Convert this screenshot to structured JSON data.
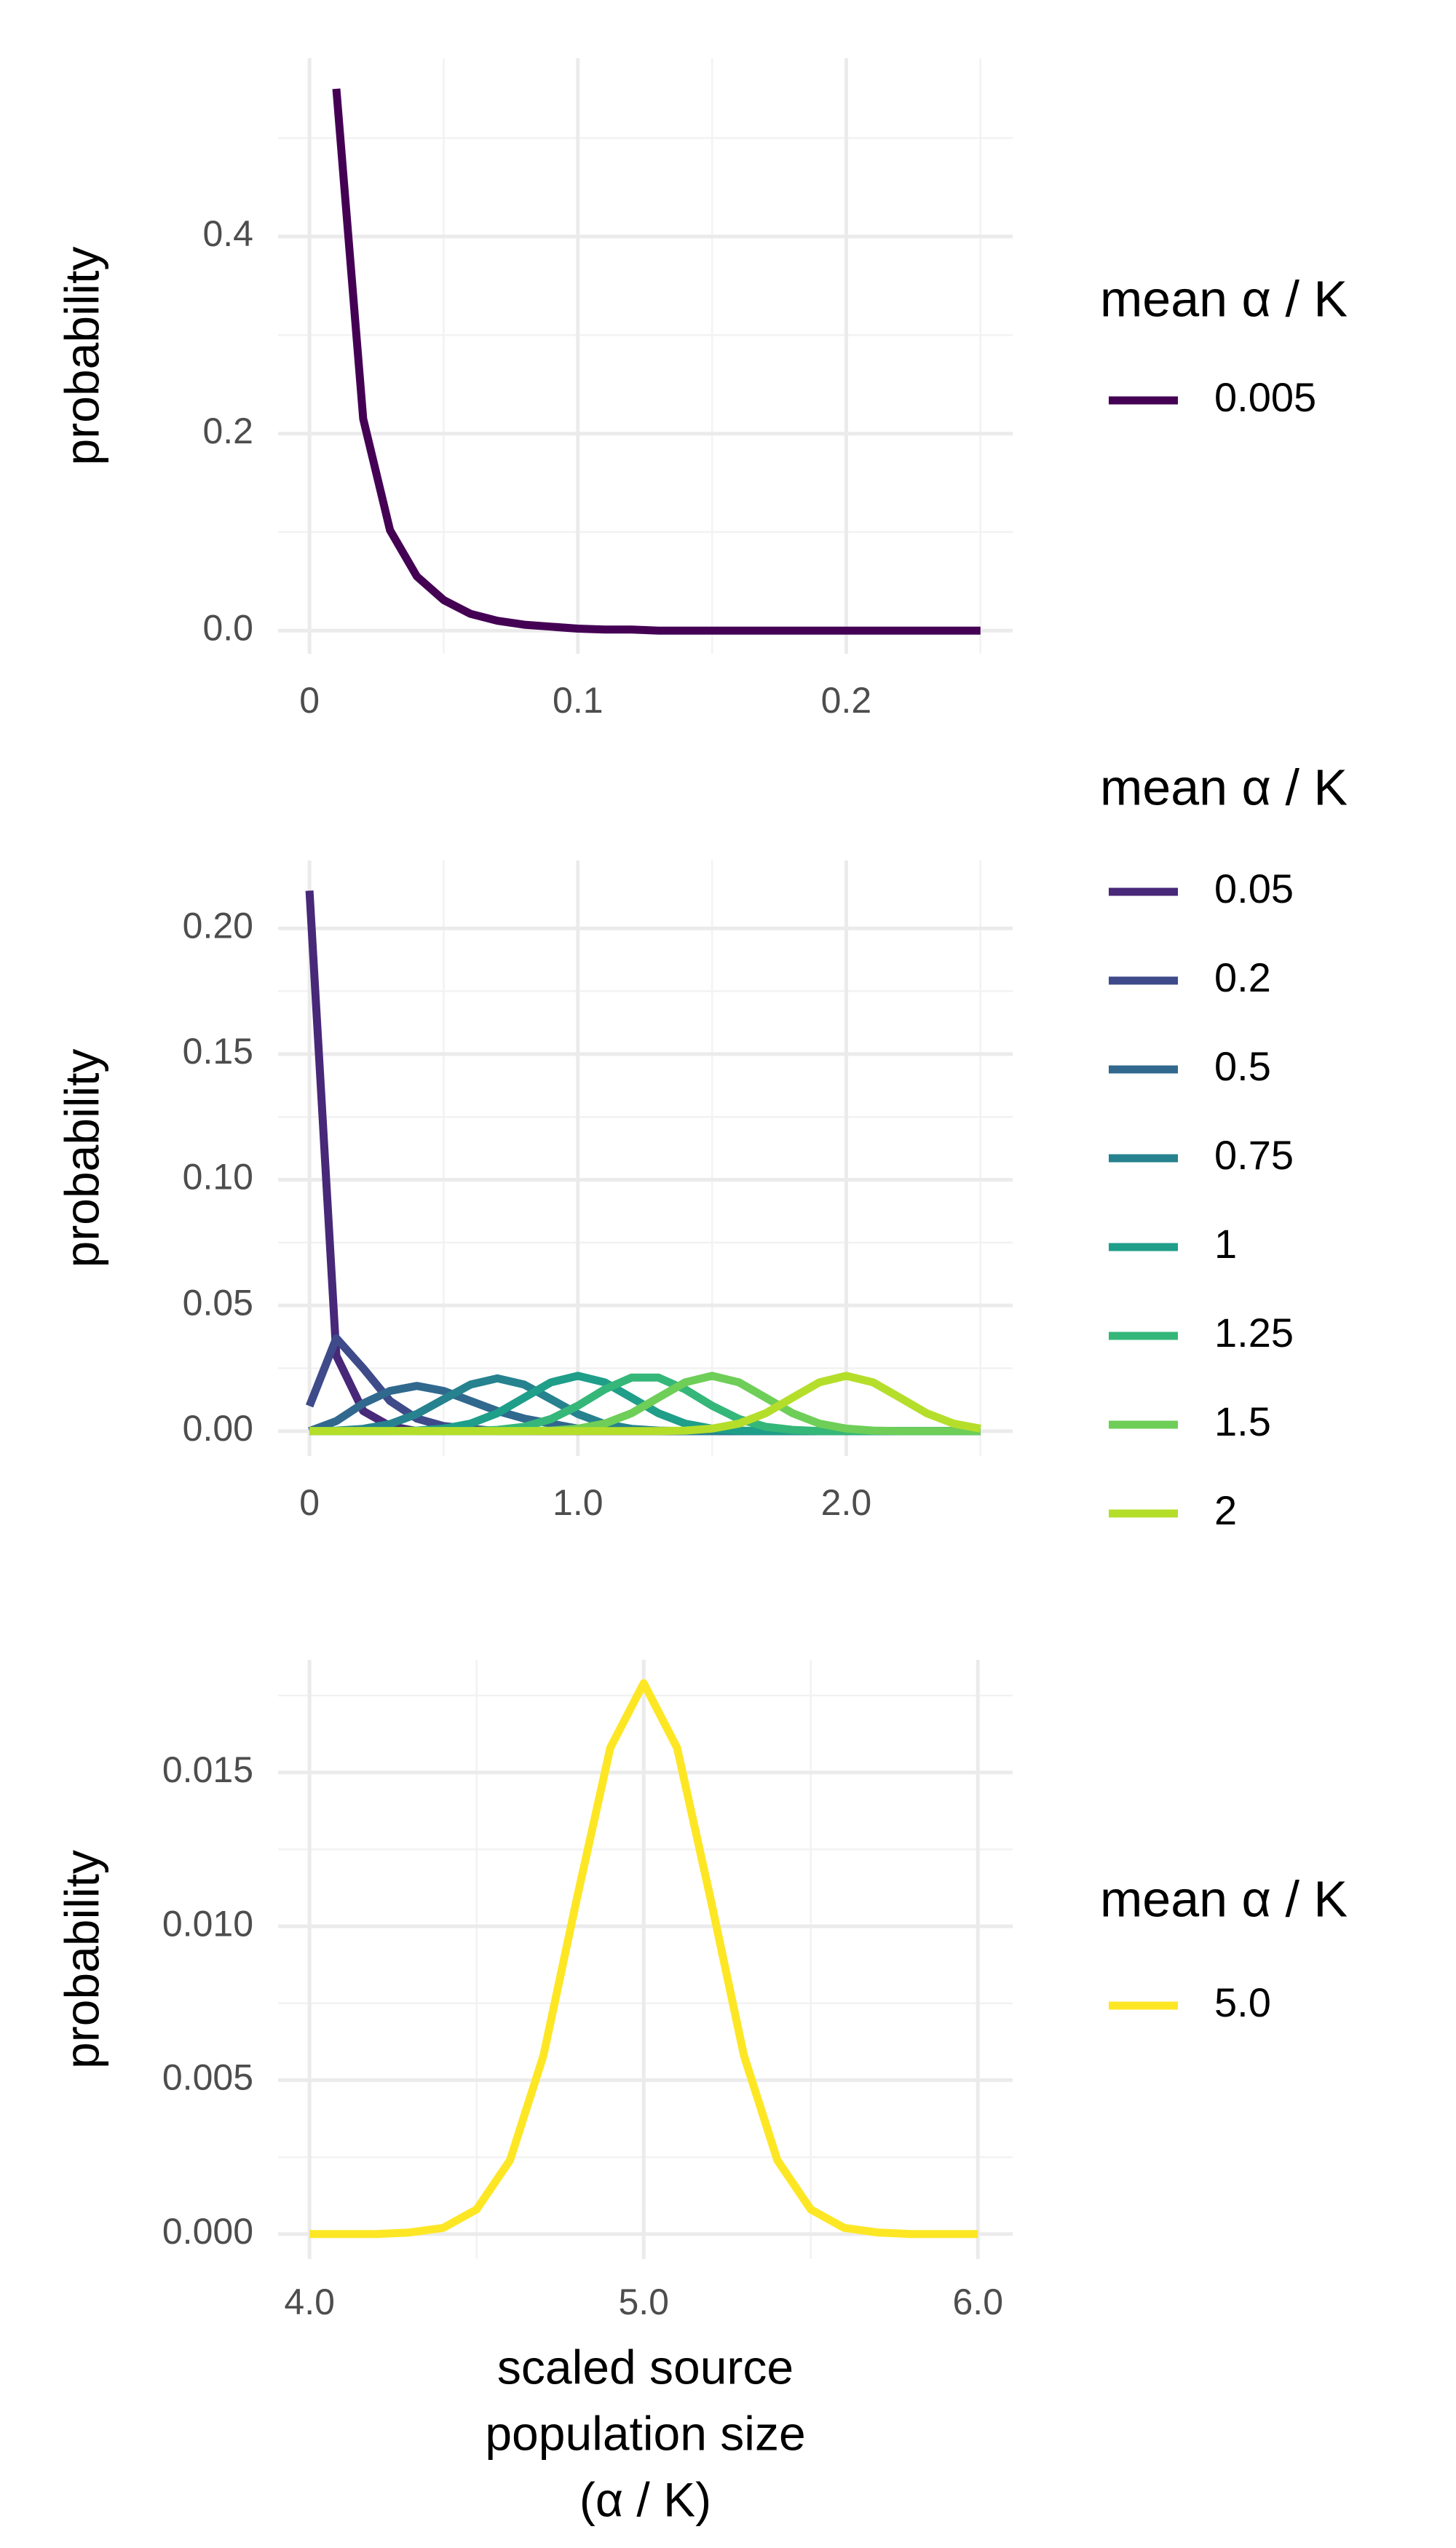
{
  "chart_data": [
    {
      "type": "line",
      "ylabel": "probability",
      "legend_title": "mean α / K",
      "grid": true,
      "x": [
        0.01,
        0.02,
        0.03,
        0.04,
        0.05,
        0.06,
        0.07,
        0.08,
        0.09,
        0.1,
        0.11,
        0.12,
        0.13,
        0.14,
        0.15,
        0.16,
        0.17,
        0.18,
        0.19,
        0.2,
        0.21,
        0.22,
        0.23,
        0.24,
        0.25
      ],
      "series": [
        {
          "name": "0.005",
          "color": "#440154",
          "values": [
            0.55,
            0.215,
            0.102,
            0.055,
            0.031,
            0.017,
            0.01,
            0.006,
            0.004,
            0.002,
            0.001,
            0.001,
            0,
            0,
            0,
            0,
            0,
            0,
            0,
            0,
            0,
            0,
            0,
            0,
            0
          ]
        }
      ],
      "xlim": [
        -0.0117,
        0.262
      ],
      "ylim": [
        -0.0235,
        0.581
      ],
      "xticks": [
        0,
        0.1,
        0.2
      ],
      "yticks": [
        {
          "value": 0,
          "label": "0.0"
        },
        0.2,
        0.4
      ],
      "minor_xticks": [
        0.05,
        0.15,
        0.25
      ],
      "minor_yticks": [
        0.1,
        0.3,
        0.5
      ]
    },
    {
      "type": "line",
      "ylabel": "probability",
      "legend_title": "mean α / K",
      "grid": true,
      "x": [
        0,
        0.1,
        0.2,
        0.3,
        0.4,
        0.5,
        0.6,
        0.7,
        0.8,
        0.9,
        1.0,
        1.1,
        1.2,
        1.3,
        1.4,
        1.5,
        1.6,
        1.7,
        1.8,
        1.9,
        2.0,
        2.1,
        2.2,
        2.3,
        2.4,
        2.5
      ],
      "series": [
        {
          "name": "0.05",
          "color": "#482878",
          "values": [
            0.215,
            0.03,
            0.008,
            0.002,
            0,
            0,
            0,
            0,
            0,
            0,
            0,
            0,
            0,
            0,
            0,
            0,
            0,
            0,
            0,
            0,
            0,
            0,
            0,
            0,
            0,
            0
          ]
        },
        {
          "name": "0.2",
          "color": "#3e4a89",
          "values": [
            0.01,
            0.037,
            0.025,
            0.012,
            0.005,
            0.002,
            0.001,
            0,
            0,
            0,
            0,
            0,
            0,
            0,
            0,
            0,
            0,
            0,
            0,
            0,
            0,
            0,
            0,
            0,
            0,
            0
          ]
        },
        {
          "name": "0.5",
          "color": "#31688e",
          "values": [
            0,
            0.004,
            0.011,
            0.016,
            0.018,
            0.016,
            0.012,
            0.008,
            0.005,
            0.003,
            0.001,
            0.0005,
            0,
            0,
            0,
            0,
            0,
            0,
            0,
            0,
            0,
            0,
            0,
            0,
            0,
            0
          ]
        },
        {
          "name": "0.75",
          "color": "#26828e",
          "values": [
            0,
            0.0002,
            0.0009,
            0.0028,
            0.0068,
            0.0127,
            0.0185,
            0.021,
            0.0185,
            0.0127,
            0.0068,
            0.0028,
            0.0009,
            0.0002,
            0,
            0,
            0,
            0,
            0,
            0,
            0,
            0,
            0,
            0,
            0,
            0
          ]
        },
        {
          "name": "1",
          "color": "#1f9e89",
          "values": [
            0,
            0,
            0,
            0,
            0.0002,
            0.001,
            0.003,
            0.0071,
            0.0133,
            0.0194,
            0.022,
            0.0194,
            0.0133,
            0.0071,
            0.003,
            0.001,
            0.0002,
            0,
            0,
            0,
            0,
            0,
            0,
            0,
            0,
            0
          ]
        },
        {
          "name": "1.25",
          "color": "#35b779",
          "values": [
            0,
            0,
            0,
            0,
            0,
            0,
            0,
            0.0005,
            0.0017,
            0.0048,
            0.0101,
            0.0166,
            0.0213,
            0.0213,
            0.0166,
            0.0101,
            0.0048,
            0.0017,
            0.0005,
            0,
            0,
            0,
            0,
            0,
            0,
            0
          ]
        },
        {
          "name": "1.5",
          "color": "#6ece58",
          "values": [
            0,
            0,
            0,
            0,
            0,
            0,
            0,
            0,
            0,
            0.0002,
            0.001,
            0.003,
            0.0071,
            0.0133,
            0.0194,
            0.022,
            0.0194,
            0.0133,
            0.0071,
            0.003,
            0.001,
            0.0002,
            0,
            0,
            0,
            0
          ]
        },
        {
          "name": "2",
          "color": "#b5de2b",
          "values": [
            0,
            0,
            0,
            0,
            0,
            0,
            0,
            0,
            0,
            0,
            0,
            0,
            0,
            0,
            0.0002,
            0.001,
            0.003,
            0.0071,
            0.0133,
            0.0194,
            0.022,
            0.0194,
            0.0133,
            0.0071,
            0.003,
            0.001
          ]
        }
      ],
      "xlim": [
        -0.117,
        2.62
      ],
      "ylim": [
        -0.0099,
        0.227
      ],
      "xticks": [
        0,
        {
          "value": 1,
          "label": "1.0"
        },
        {
          "value": 2,
          "label": "2.0"
        }
      ],
      "yticks": [
        {
          "value": 0,
          "label": "0.00"
        },
        0.05,
        {
          "value": 0.1,
          "label": "0.10"
        },
        0.15,
        {
          "value": 0.2,
          "label": "0.20"
        }
      ],
      "minor_xticks": [
        0.5,
        1.5,
        2.5
      ],
      "minor_yticks": [
        0.025,
        0.075,
        0.125,
        0.175
      ]
    },
    {
      "type": "line",
      "ylabel": "probability",
      "legend_title": "mean α / K",
      "grid": true,
      "xlabel": [
        "scaled source",
        "population size",
        "(α / K)"
      ],
      "x": [
        4.0,
        4.1,
        4.2,
        4.3,
        4.4,
        4.5,
        4.6,
        4.7,
        4.8,
        4.9,
        5.0,
        5.1,
        5.2,
        5.3,
        5.4,
        5.5,
        5.6,
        5.7,
        5.8,
        5.9,
        6.0
      ],
      "series": [
        {
          "name": "5.0",
          "color": "#fde725",
          "values": [
            0,
            0,
            0,
            5e-05,
            0.0002,
            0.0008,
            0.0024,
            0.0058,
            0.0109,
            0.0158,
            0.0179,
            0.0158,
            0.0109,
            0.0058,
            0.0024,
            0.0008,
            0.0002,
            5e-05,
            0,
            0,
            0
          ]
        }
      ],
      "xlim": [
        3.906,
        6.104
      ],
      "ylim": [
        -0.00081,
        0.01866
      ],
      "xticks": [
        {
          "value": 4,
          "label": "4.0"
        },
        {
          "value": 5,
          "label": "5.0"
        },
        {
          "value": 6,
          "label": "6.0"
        }
      ],
      "yticks": [
        {
          "value": 0,
          "label": "0.000"
        },
        0.005,
        {
          "value": 0.01,
          "label": "0.010"
        },
        0.015
      ],
      "minor_xticks": [
        4.5,
        5.5
      ],
      "minor_yticks": [
        0.0025,
        0.0075,
        0.0125,
        0.0175
      ]
    }
  ]
}
